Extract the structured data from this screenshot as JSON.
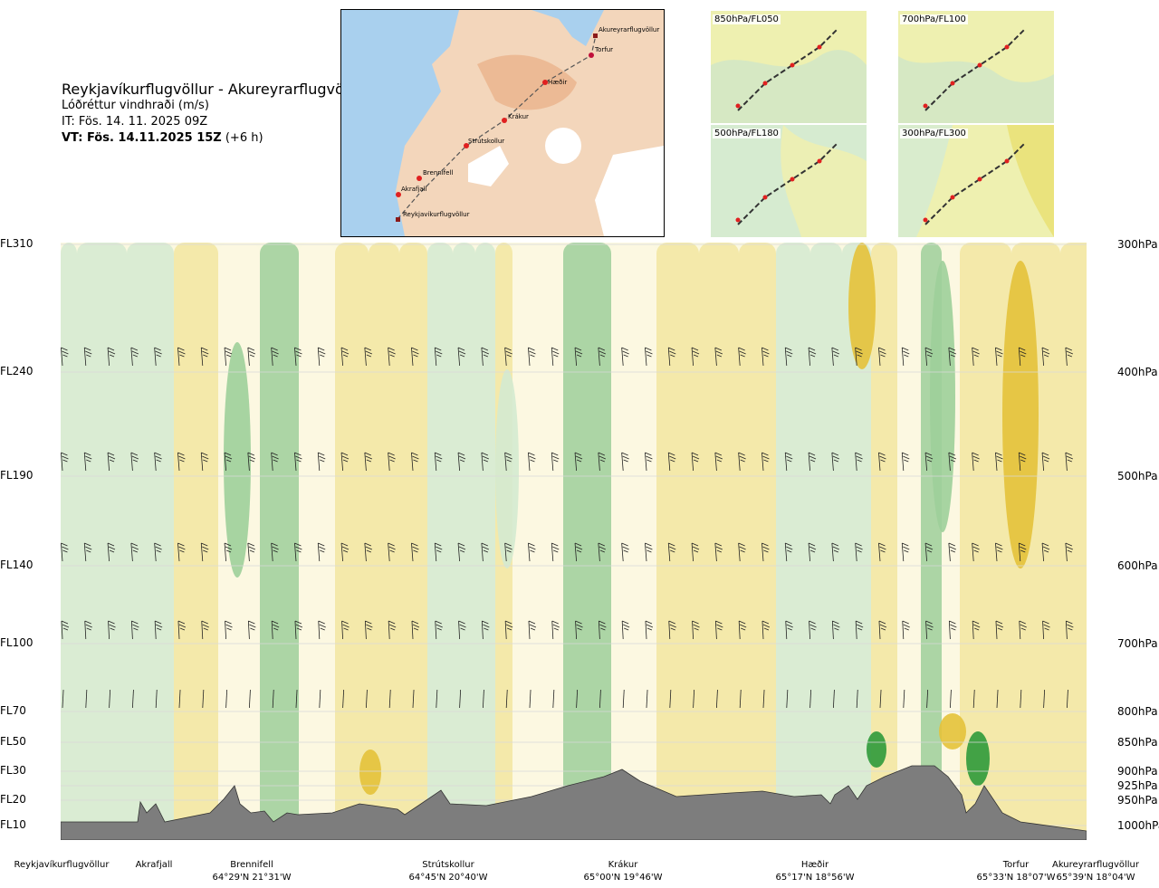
{
  "title": {
    "route": "Reykjavíkurflugvöllur - Akureyrarflugvöllur",
    "variable": "Lóðréttur vindhraði (m/s)",
    "it": "IT: Fös. 14. 11. 2025 09Z",
    "vt_bold": "VT: Fös. 14.11.2025 15Z",
    "vt_offset": "(+6 h)"
  },
  "route_map": {
    "waypoints": [
      "Akureyrarflugvöllur",
      "Torfur",
      "Hæðir",
      "Krákur",
      "Strútskollur",
      "Brennifell",
      "Akrafjall",
      "Reykjavíkurflugvöllur"
    ]
  },
  "mini_maps": [
    {
      "label": "850hPa/FL050"
    },
    {
      "label": "700hPa/FL100"
    },
    {
      "label": "500hPa/FL180"
    },
    {
      "label": "300hPa/FL300"
    }
  ],
  "chart_data": {
    "type": "heatmap",
    "description_levels": [
      {
        "fl": "FL310",
        "hpa": "300hPa"
      },
      {
        "fl": "FL240",
        "hpa": "400hPa"
      },
      {
        "fl": "FL190",
        "hpa": "500hPa"
      },
      {
        "fl": "FL140",
        "hpa": "600hPa"
      },
      {
        "fl": "FL100",
        "hpa": "700hPa"
      },
      {
        "fl": "FL70",
        "hpa": "800hPa"
      },
      {
        "fl": "FL50",
        "hpa": "850hPa"
      },
      {
        "fl": "FL30",
        "hpa": "900hPa"
      },
      {
        "fl": "",
        "hpa": "925hPa"
      },
      {
        "fl": "FL20",
        "hpa": "950hPa"
      },
      {
        "fl": "FL10",
        "hpa": "1000hPa"
      }
    ],
    "waypoints": [
      {
        "name": "Reykjavíkurflugvöllur",
        "coord": ""
      },
      {
        "name": "Akrafjall",
        "coord": ""
      },
      {
        "name": "Brennifell",
        "coord": "64°29'N 21°31'W"
      },
      {
        "name": "Strútskollur",
        "coord": "64°45'N 20°40'W"
      },
      {
        "name": "Krákur",
        "coord": "65°00'N 19°46'W"
      },
      {
        "name": "Hæðir",
        "coord": "65°17'N 18°56'W"
      },
      {
        "name": "Torfur",
        "coord": "65°33'N 18°07'W"
      },
      {
        "name": "Akureyrarflugvöllur",
        "coord": "65°39'N 18°04'W"
      }
    ],
    "colors": {
      "strong_down": "#c56a2a",
      "mod_down": "#e4c23a",
      "weak_down": "#f2e6a0",
      "neutral": "#fbf8e0",
      "weak_up": "#d4ead0",
      "mod_up": "#9dcf9a",
      "strong_up": "#2f9a3a",
      "terrain": "#7d7d7d"
    }
  }
}
